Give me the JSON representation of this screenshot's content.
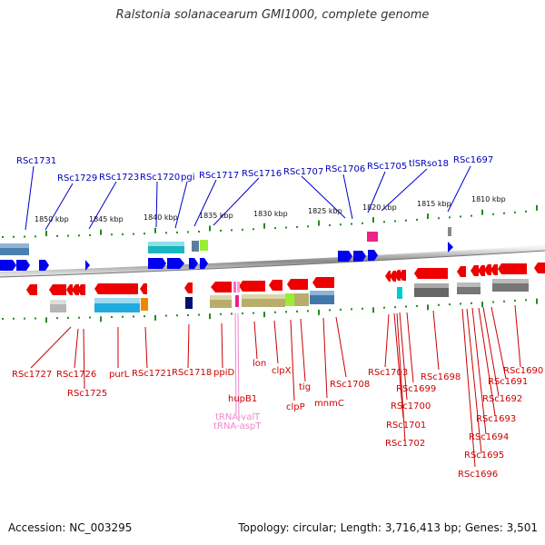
{
  "title": "Ralstonia solanacearum GMI1000, complete genome",
  "footer": {
    "accession": "Accession: NC_003295",
    "summary": "Topology: circular; Length: 3,716,413 bp; Genes: 3,501"
  },
  "colors": {
    "forward_gene": "#0000ee",
    "reverse_gene": "#ee0000",
    "rna": "#ff88cc",
    "backbone": "#999999",
    "scale": "#228b22"
  },
  "scale_ticks": [
    "1850 kbp",
    "1845 kbp",
    "1840 kbp",
    "1835 kbp",
    "1830 kbp",
    "1825 kbp",
    "1820 kbp",
    "1815 kbp",
    "1810 kbp"
  ],
  "top_labels": [
    "RSc1731",
    "RSc1729",
    "RSc1723",
    "RSc1720",
    "pgi",
    "RSc1717",
    "RSc1716",
    "RSc1707",
    "RSc1706",
    "RSc1705",
    "tlSRso18",
    "RSc1697"
  ],
  "bottom_labels": [
    "RSc1727",
    "RSc1726",
    "RSc1725",
    "purL",
    "RSc1721",
    "RSc1718",
    "ppiD",
    "hupB1",
    "lon",
    "clpX",
    "clpP",
    "tig",
    "mnmC",
    "RSc1708",
    "RSc1703",
    "RSc1701",
    "RSc1702",
    "RSc1700",
    "RSc1699",
    "RSc1698",
    "RSc1696",
    "RSc1695",
    "RSc1694",
    "RSc1693",
    "RSc1692",
    "RSc1691",
    "RSc1690"
  ],
  "rna_labels": [
    "tRNA-valT",
    "tRNA-aspT"
  ]
}
